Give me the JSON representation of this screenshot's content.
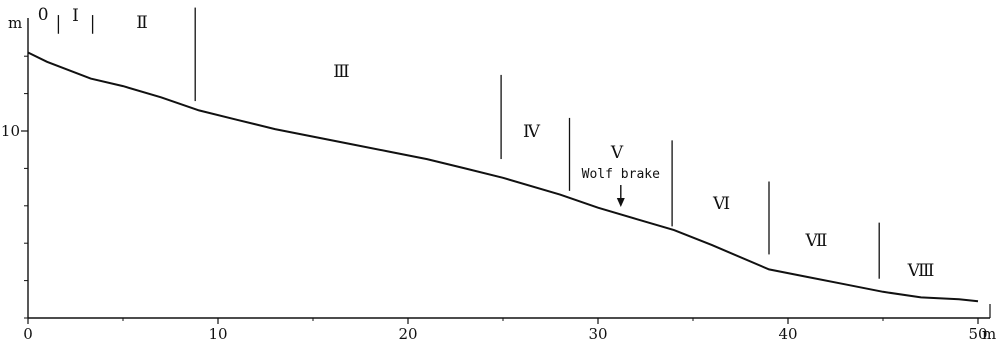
{
  "chart_data": {
    "type": "line",
    "title": "",
    "xlabel": "",
    "ylabel": "",
    "x_unit": "m",
    "y_unit": "m",
    "xlim": [
      0,
      50
    ],
    "ylim": [
      0,
      14
    ],
    "x_ticks": [
      0,
      10,
      20,
      30,
      40,
      50
    ],
    "x_tick_labels": [
      "0",
      "10",
      "20",
      "30",
      "40",
      "50"
    ],
    "y_ticks": [
      10
    ],
    "y_tick_labels": [
      "10"
    ],
    "grid": false,
    "legend": "none",
    "series": [
      {
        "x": [
          0,
          1,
          3.3,
          5,
          7,
          9,
          11,
          13,
          15,
          17,
          19,
          21,
          23,
          25,
          28,
          30,
          32,
          34,
          36,
          39,
          41,
          43,
          45,
          47,
          49,
          50
        ],
        "y": [
          14.2,
          13.7,
          12.8,
          12.4,
          11.8,
          11.1,
          10.6,
          10.1,
          9.7,
          9.3,
          8.9,
          8.5,
          8.0,
          7.5,
          6.6,
          5.9,
          5.3,
          4.7,
          3.9,
          2.6,
          2.2,
          1.8,
          1.4,
          1.1,
          1.0,
          0.9
        ]
      }
    ],
    "zones": [
      {
        "label": "0",
        "x": 0.8
      },
      {
        "label": "Ⅰ",
        "x": 2.5
      },
      {
        "label": "Ⅱ",
        "x": 6
      },
      {
        "label": "Ⅲ",
        "x": 16.5
      },
      {
        "label": "Ⅳ",
        "x": 26.5
      },
      {
        "label": "Ⅴ",
        "x": 31
      },
      {
        "label": "Ⅵ",
        "x": 36.5
      },
      {
        "label": "Ⅶ",
        "x": 41.5
      },
      {
        "label": "Ⅷ",
        "x": 47
      }
    ],
    "boundaries": [
      {
        "x": 1.6,
        "y_top": 16.2,
        "y_bottom": 15.2
      },
      {
        "x": 3.4,
        "y_top": 16.2,
        "y_bottom": 15.2
      },
      {
        "x": 8.8,
        "y_top": 16.6,
        "y_bottom": 11.6
      },
      {
        "x": 24.9,
        "y_top": 13.0,
        "y_bottom": 8.5
      },
      {
        "x": 28.5,
        "y_top": 10.7,
        "y_bottom": 6.8
      },
      {
        "x": 33.9,
        "y_top": 9.5,
        "y_bottom": 4.9
      },
      {
        "x": 39.0,
        "y_top": 7.3,
        "y_bottom": 3.4
      },
      {
        "x": 44.8,
        "y_top": 5.1,
        "y_bottom": 2.1
      }
    ],
    "annotations": [
      {
        "text": "Wolf brake",
        "x": 31.2,
        "arrow_to_y": 5.8
      }
    ]
  }
}
